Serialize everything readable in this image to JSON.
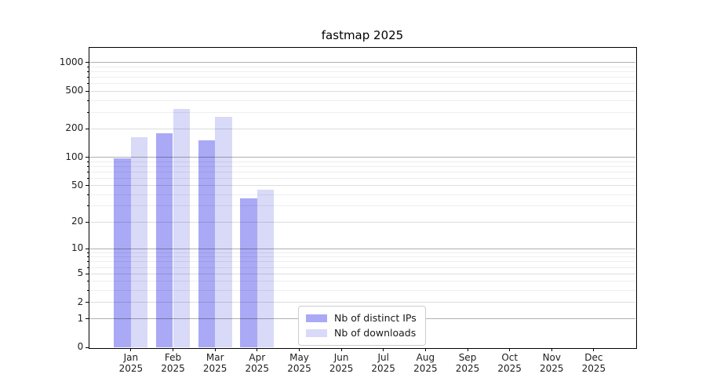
{
  "chart_data": {
    "type": "bar",
    "title": "fastmap 2025",
    "x": {
      "categories": [
        "Jan",
        "Feb",
        "Mar",
        "Apr",
        "May",
        "Jun",
        "Jul",
        "Aug",
        "Sep",
        "Oct",
        "Nov",
        "Dec"
      ],
      "year_suffix": "2025"
    },
    "y_axis": {
      "scale": "log10(value+1), zero at baseline",
      "tick_labels": [
        "0",
        "1",
        "2",
        "5",
        "10",
        "20",
        "50",
        "100",
        "200",
        "500",
        "1000"
      ],
      "tick_values": [
        0,
        1,
        2,
        5,
        10,
        20,
        50,
        100,
        200,
        500,
        1000
      ],
      "range_estimate": [
        0,
        1450
      ],
      "grid": "on"
    },
    "series": [
      {
        "name": "Nb of distinct IPs",
        "color": "#a9a9f6",
        "values": [
          98,
          180,
          152,
          36,
          0,
          0,
          0,
          0,
          0,
          0,
          0,
          0
        ]
      },
      {
        "name": "Nb of downloads",
        "color": "#d9d9f8",
        "values": [
          163,
          322,
          267,
          45,
          0,
          0,
          0,
          0,
          0,
          0,
          0,
          0
        ]
      }
    ],
    "legend": {
      "entries": [
        "Nb of distinct IPs",
        "Nb of downloads"
      ],
      "position": "inside plot, lower center"
    },
    "gridlines": {
      "dark_values": [
        1,
        10,
        100,
        1000
      ],
      "light_values": [
        2,
        5,
        20,
        50,
        200,
        500
      ],
      "minor_values": [
        3,
        4,
        6,
        7,
        8,
        9,
        30,
        40,
        60,
        70,
        80,
        90,
        300,
        400,
        600,
        700,
        800,
        900
      ]
    },
    "colors": {
      "background": "#ffffff",
      "spine": "#000000",
      "text": "#202020",
      "grid_dark": "#b1b1b1",
      "grid_light": "#dddddd",
      "grid_minor": "#eeeeee"
    }
  }
}
